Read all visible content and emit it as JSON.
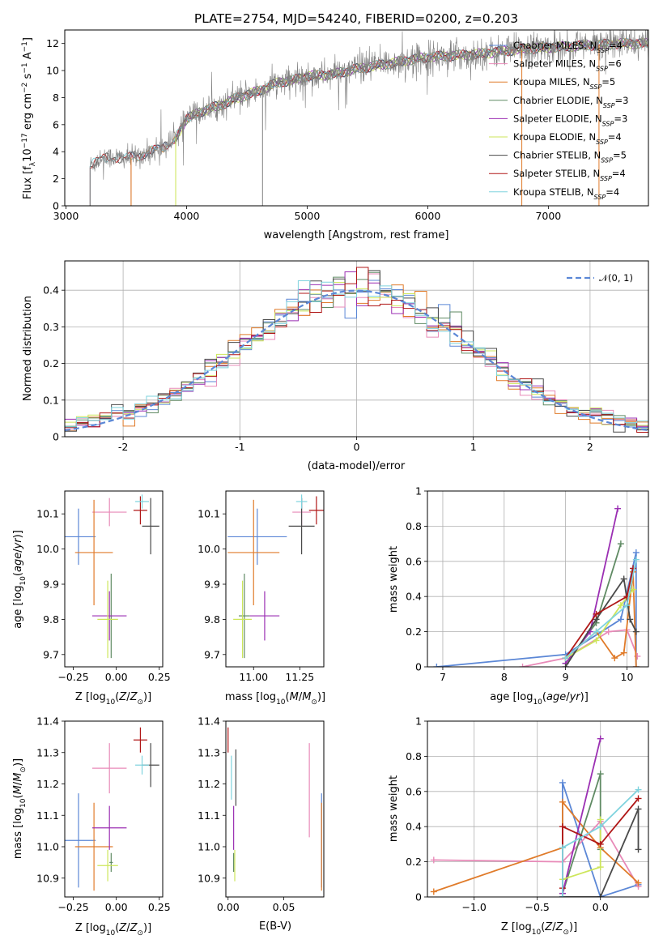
{
  "colors": {
    "Chabrier MILES": "#5b87d6",
    "Salpeter MILES": "#e88ab8",
    "Kroupa MILES": "#e07b2a",
    "Chabrier ELODIE": "#5f8a63",
    "Salpeter ELODIE": "#9b2fb3",
    "Kroupa ELODIE": "#cde65a",
    "Chabrier STELIB": "#4a4a4a",
    "Salpeter STELIB": "#b01717",
    "Kroupa STELIB": "#7fd3de"
  },
  "chart_data": [
    {
      "id": "spectrum",
      "type": "line",
      "title": "PLATE=2754, MJD=54240, FIBERID=0200, z=0.203",
      "xlabel": "wavelength [Angstrom, rest frame]",
      "ylabel": "Flux [f_λ10^-17 erg cm^-2 s^-1 A^-1]",
      "xlim": [
        2990,
        7830
      ],
      "ylim": [
        0,
        13
      ],
      "xticks": [
        3000,
        4000,
        5000,
        6000,
        7000
      ],
      "yticks": [
        0,
        2,
        4,
        6,
        8,
        10,
        12
      ],
      "grid": false,
      "legend_loc": "upper right",
      "legend": [
        {
          "model": "Chabrier MILES",
          "label": "Chabrier MILES, N",
          "sub": "SSP",
          "tail": "=4"
        },
        {
          "model": "Salpeter MILES",
          "label": "Salpeter MILES, N",
          "sub": "SSP",
          "tail": "=6"
        },
        {
          "model": "Kroupa MILES",
          "label": "Kroupa MILES, N",
          "sub": "SSP",
          "tail": "=5"
        },
        {
          "model": "Chabrier ELODIE",
          "label": "Chabrier ELODIE, N",
          "sub": "SSP",
          "tail": "=3"
        },
        {
          "model": "Salpeter ELODIE",
          "label": "Salpeter ELODIE, N",
          "sub": "SSP",
          "tail": "=3"
        },
        {
          "model": "Kroupa ELODIE",
          "label": "Kroupa ELODIE, N",
          "sub": "SSP",
          "tail": "=4"
        },
        {
          "model": "Chabrier STELIB",
          "label": "Chabrier STELIB, N",
          "sub": "SSP",
          "tail": "=5"
        },
        {
          "model": "Salpeter STELIB",
          "label": "Salpeter STELIB, N",
          "sub": "SSP",
          "tail": "=4"
        },
        {
          "model": "Kroupa STELIB",
          "label": "Kroupa STELIB, N",
          "sub": "SSP",
          "tail": "=4"
        }
      ],
      "continuum": [
        [
          3200,
          3.0
        ],
        [
          3300,
          3.5
        ],
        [
          3400,
          3.6
        ],
        [
          3500,
          3.5
        ],
        [
          3600,
          3.7
        ],
        [
          3700,
          4.0
        ],
        [
          3800,
          4.3
        ],
        [
          3900,
          4.9
        ],
        [
          4000,
          6.4
        ],
        [
          4100,
          6.9
        ],
        [
          4200,
          7.2
        ],
        [
          4300,
          7.5
        ],
        [
          4400,
          7.9
        ],
        [
          4500,
          8.2
        ],
        [
          4600,
          8.5
        ],
        [
          4700,
          8.9
        ],
        [
          4800,
          9.2
        ],
        [
          4900,
          9.3
        ],
        [
          5000,
          9.6
        ],
        [
          5200,
          9.7
        ],
        [
          5400,
          10.1
        ],
        [
          5600,
          10.4
        ],
        [
          5800,
          10.7
        ],
        [
          6000,
          11.0
        ],
        [
          6200,
          11.1
        ],
        [
          6400,
          11.2
        ],
        [
          6600,
          11.4
        ],
        [
          6800,
          11.6
        ],
        [
          7000,
          11.7
        ],
        [
          7200,
          11.8
        ],
        [
          7400,
          11.9
        ],
        [
          7600,
          12.0
        ]
      ],
      "model_starts": {
        "Chabrier MILES": 3540,
        "Salpeter MILES": 3540,
        "Kroupa MILES": 3540,
        "Chabrier ELODIE": 3910,
        "Salpeter ELODIE": 3910,
        "Kroupa ELODIE": 3910,
        "Chabrier STELIB": 3200,
        "Salpeter STELIB": 3200,
        "Kroupa STELIB": 3200
      }
    },
    {
      "id": "residuals",
      "type": "histogram",
      "xlabel": "(data-model)/error",
      "ylabel": "Normed distribution",
      "xlim": [
        -2.5,
        2.5
      ],
      "ylim": [
        0,
        0.48
      ],
      "xticks": [
        -2,
        -1,
        0,
        1,
        2
      ],
      "yticks": [
        0.0,
        0.1,
        0.2,
        0.3,
        0.4
      ],
      "grid": true,
      "bins": 50,
      "reference": {
        "label": "𝒩(0, 1)",
        "mean": 0,
        "sigma": 1,
        "style": "dashed"
      },
      "legend_loc": "upper right"
    },
    {
      "id": "age_vs_Z",
      "type": "errorbar",
      "xlabel": "Z [log10(Z/Z⊙)]",
      "ylabel": "age [log10(age/yr)]",
      "xlim": [
        -0.3,
        0.27
      ],
      "ylim": [
        9.665,
        10.165
      ],
      "xticks": [
        -0.25,
        0.0,
        0.25
      ],
      "xticklabels": [
        "−0.25",
        "0.00",
        "0.25"
      ],
      "yticks": [
        9.7,
        9.8,
        9.9,
        10.0,
        10.1
      ],
      "yticklabels": [
        "9.7",
        "9.8",
        "9.9",
        "10.0",
        "10.1"
      ],
      "points": [
        {
          "model": "Chabrier MILES",
          "x": -0.22,
          "xerr": 0.1,
          "y": 10.035,
          "yerr": 0.08
        },
        {
          "model": "Salpeter MILES",
          "x": -0.04,
          "xerr": 0.1,
          "y": 10.105,
          "yerr": 0.04
        },
        {
          "model": "Kroupa MILES",
          "x": -0.13,
          "xerr": 0.11,
          "y": 9.99,
          "yerr": 0.15
        },
        {
          "model": "Chabrier ELODIE",
          "x": -0.03,
          "xerr": 0.01,
          "y": 9.81,
          "yerr": 0.12
        },
        {
          "model": "Salpeter ELODIE",
          "x": -0.04,
          "xerr": 0.1,
          "y": 9.81,
          "yerr": 0.07
        },
        {
          "model": "Kroupa ELODIE",
          "x": -0.05,
          "xerr": 0.06,
          "y": 9.8,
          "yerr": 0.11
        },
        {
          "model": "Chabrier STELIB",
          "x": 0.2,
          "xerr": 0.05,
          "y": 10.065,
          "yerr": 0.08
        },
        {
          "model": "Salpeter STELIB",
          "x": 0.14,
          "xerr": 0.04,
          "y": 10.11,
          "yerr": 0.04
        },
        {
          "model": "Kroupa STELIB",
          "x": 0.15,
          "xerr": 0.04,
          "y": 10.135,
          "yerr": 0.02
        }
      ]
    },
    {
      "id": "age_vs_mass",
      "type": "errorbar",
      "xlabel": "mass [log10(M/M⊙)]",
      "ylabel": "",
      "xlim": [
        10.85,
        11.38
      ],
      "ylim": [
        9.665,
        10.165
      ],
      "xticks": [
        11.0,
        11.25
      ],
      "xticklabels": [
        "11.00",
        "11.25"
      ],
      "yticks": [
        9.7,
        9.8,
        9.9,
        10.0,
        10.1
      ],
      "yticklabels": [
        "9.7",
        "9.8",
        "9.9",
        "10.0",
        "10.1"
      ],
      "points": [
        {
          "model": "Chabrier MILES",
          "x": 11.02,
          "xerr": 0.16,
          "y": 10.035,
          "yerr": 0.08
        },
        {
          "model": "Salpeter MILES",
          "x": 11.26,
          "xerr": 0.05,
          "y": 10.105,
          "yerr": 0.04
        },
        {
          "model": "Kroupa MILES",
          "x": 11.0,
          "xerr": 0.14,
          "y": 9.99,
          "yerr": 0.15
        },
        {
          "model": "Chabrier ELODIE",
          "x": 10.95,
          "xerr": 0.03,
          "y": 9.81,
          "yerr": 0.12
        },
        {
          "model": "Salpeter ELODIE",
          "x": 11.06,
          "xerr": 0.08,
          "y": 9.81,
          "yerr": 0.07
        },
        {
          "model": "Kroupa ELODIE",
          "x": 10.94,
          "xerr": 0.05,
          "y": 9.8,
          "yerr": 0.11
        },
        {
          "model": "Chabrier STELIB",
          "x": 11.26,
          "xerr": 0.07,
          "y": 10.065,
          "yerr": 0.08
        },
        {
          "model": "Salpeter STELIB",
          "x": 11.34,
          "xerr": 0.04,
          "y": 10.11,
          "yerr": 0.04
        },
        {
          "model": "Kroupa STELIB",
          "x": 11.26,
          "xerr": 0.03,
          "y": 10.135,
          "yerr": 0.02
        }
      ]
    },
    {
      "id": "weight_vs_age",
      "type": "line",
      "xlabel": "age [log10(age/yr)]",
      "ylabel": "mass weight",
      "xlim": [
        6.75,
        10.35
      ],
      "ylim": [
        0.0,
        1.0
      ],
      "xticks": [
        7,
        8,
        9,
        10
      ],
      "yticks": [
        0.0,
        0.2,
        0.4,
        0.6,
        0.8,
        1.0
      ],
      "grid": true,
      "series": [
        {
          "model": "Chabrier MILES",
          "x": [
            6.9,
            9.0,
            9.9,
            10.15,
            10.15
          ],
          "y": [
            0.0,
            0.07,
            0.27,
            0.65,
            0.0
          ]
        },
        {
          "model": "Salpeter MILES",
          "x": [
            8.3,
            9.0,
            9.7,
            10.0,
            10.17
          ],
          "y": [
            0.0,
            0.05,
            0.2,
            0.21,
            0.06
          ]
        },
        {
          "model": "Kroupa MILES",
          "x": [
            9.0,
            9.5,
            9.8,
            9.95,
            10.1,
            10.15
          ],
          "y": [
            0.05,
            0.2,
            0.05,
            0.08,
            0.54,
            0.0
          ]
        },
        {
          "model": "Chabrier ELODIE",
          "x": [
            9.0,
            9.5,
            9.9
          ],
          "y": [
            0.02,
            0.25,
            0.7
          ]
        },
        {
          "model": "Salpeter ELODIE",
          "x": [
            9.0,
            9.4,
            9.85
          ],
          "y": [
            0.02,
            0.2,
            0.9
          ]
        },
        {
          "model": "Kroupa ELODIE",
          "x": [
            9.0,
            9.5,
            9.9,
            10.1
          ],
          "y": [
            0.05,
            0.15,
            0.35,
            0.44
          ]
        },
        {
          "model": "Chabrier STELIB",
          "x": [
            9.0,
            9.5,
            9.95,
            10.05,
            10.15
          ],
          "y": [
            0.0,
            0.27,
            0.5,
            0.27,
            0.2
          ]
        },
        {
          "model": "Salpeter STELIB",
          "x": [
            9.0,
            9.5,
            10.0,
            10.1
          ],
          "y": [
            0.05,
            0.3,
            0.4,
            0.56
          ]
        },
        {
          "model": "Kroupa STELIB",
          "x": [
            9.0,
            9.5,
            10.0,
            10.15
          ],
          "y": [
            0.05,
            0.2,
            0.35,
            0.61
          ]
        }
      ]
    },
    {
      "id": "mass_vs_Z",
      "type": "errorbar",
      "xlabel": "Z [log10(Z/Z⊙)]",
      "ylabel": "mass [log10(M/M⊙)]",
      "xlim": [
        -0.3,
        0.27
      ],
      "ylim": [
        10.84,
        11.4
      ],
      "xticks": [
        -0.25,
        0.0,
        0.25
      ],
      "xticklabels": [
        "−0.25",
        "0.00",
        "0.25"
      ],
      "yticks": [
        10.9,
        11.0,
        11.1,
        11.2,
        11.3,
        11.4
      ],
      "yticklabels": [
        "10.9",
        "11.0",
        "11.1",
        "11.2",
        "11.3",
        "11.4"
      ],
      "points": [
        {
          "model": "Chabrier MILES",
          "x": -0.22,
          "xerr": 0.1,
          "y": 11.02,
          "yerr": 0.15
        },
        {
          "model": "Salpeter MILES",
          "x": -0.04,
          "xerr": 0.1,
          "y": 11.25,
          "yerr": 0.08
        },
        {
          "model": "Kroupa MILES",
          "x": -0.13,
          "xerr": 0.11,
          "y": 11.0,
          "yerr": 0.14
        },
        {
          "model": "Chabrier ELODIE",
          "x": -0.03,
          "xerr": 0.01,
          "y": 10.95,
          "yerr": 0.03
        },
        {
          "model": "Salpeter ELODIE",
          "x": -0.04,
          "xerr": 0.1,
          "y": 11.06,
          "yerr": 0.07
        },
        {
          "model": "Kroupa ELODIE",
          "x": -0.05,
          "xerr": 0.06,
          "y": 10.94,
          "yerr": 0.05
        },
        {
          "model": "Chabrier STELIB",
          "x": 0.2,
          "xerr": 0.05,
          "y": 11.26,
          "yerr": 0.07
        },
        {
          "model": "Salpeter STELIB",
          "x": 0.14,
          "xerr": 0.04,
          "y": 11.34,
          "yerr": 0.04
        },
        {
          "model": "Kroupa STELIB",
          "x": 0.15,
          "xerr": 0.04,
          "y": 11.26,
          "yerr": 0.03
        }
      ]
    },
    {
      "id": "mass_vs_ebv",
      "type": "errorbar",
      "xlabel": "E(B-V)",
      "ylabel": "",
      "xlim": [
        -0.002,
        0.086
      ],
      "ylim": [
        10.84,
        11.4
      ],
      "xticks": [
        0.0,
        0.05
      ],
      "xticklabels": [
        "0.00",
        "0.05"
      ],
      "yticks": [
        10.9,
        11.0,
        11.1,
        11.2,
        11.3,
        11.4
      ],
      "yticklabels": [
        "10.9",
        "11.0",
        "11.1",
        "11.2",
        "11.3",
        "11.4"
      ],
      "points": [
        {
          "model": "Chabrier MILES",
          "x": 0.084,
          "xerr": 0.0,
          "y": 11.02,
          "yerr": 0.15
        },
        {
          "model": "Salpeter MILES",
          "x": 0.073,
          "xerr": 0.0,
          "y": 11.18,
          "yerr": 0.15
        },
        {
          "model": "Kroupa MILES",
          "x": 0.084,
          "xerr": 0.0,
          "y": 11.0,
          "yerr": 0.14
        },
        {
          "model": "Chabrier ELODIE",
          "x": 0.005,
          "xerr": 0.0,
          "y": 10.95,
          "yerr": 0.03
        },
        {
          "model": "Salpeter ELODIE",
          "x": 0.005,
          "xerr": 0.0,
          "y": 11.06,
          "yerr": 0.07
        },
        {
          "model": "Kroupa ELODIE",
          "x": 0.006,
          "xerr": 0.0,
          "y": 10.94,
          "yerr": 0.05
        },
        {
          "model": "Chabrier STELIB",
          "x": 0.007,
          "xerr": 0.0,
          "y": 11.22,
          "yerr": 0.09
        },
        {
          "model": "Salpeter STELIB",
          "x": 0.0,
          "xerr": 0.0,
          "y": 11.34,
          "yerr": 0.04
        },
        {
          "model": "Kroupa STELIB",
          "x": 0.003,
          "xerr": 0.0,
          "y": 11.22,
          "yerr": 0.07
        }
      ]
    },
    {
      "id": "weight_vs_Z",
      "type": "line",
      "xlabel": "Z [log10(Z/Z⊙)]",
      "ylabel": "mass weight",
      "xlim": [
        -1.37,
        0.38
      ],
      "ylim": [
        0.0,
        1.0
      ],
      "xticks": [
        -1.0,
        -0.5,
        0.0
      ],
      "xticklabels": [
        "−1.0",
        "−0.5",
        "0.0"
      ],
      "yticks": [
        0.0,
        0.2,
        0.4,
        0.6,
        0.8,
        1.0
      ],
      "grid": true,
      "series": [
        {
          "model": "Chabrier MILES",
          "x": [
            -0.3,
            -0.3,
            0.0,
            0.3
          ],
          "y": [
            0.0,
            0.65,
            0.0,
            0.07
          ]
        },
        {
          "model": "Salpeter MILES",
          "x": [
            -1.32,
            -0.3,
            0.0,
            0.3
          ],
          "y": [
            0.21,
            0.2,
            0.43,
            0.06
          ]
        },
        {
          "model": "Kroupa MILES",
          "x": [
            -1.32,
            -0.3,
            -0.3,
            0.0,
            0.3
          ],
          "y": [
            0.03,
            0.28,
            0.54,
            0.28,
            0.08
          ]
        },
        {
          "model": "Chabrier ELODIE",
          "x": [
            -0.3,
            0.0,
            0.0
          ],
          "y": [
            0.02,
            0.7,
            0.27
          ]
        },
        {
          "model": "Salpeter ELODIE",
          "x": [
            -0.3,
            0.0
          ],
          "y": [
            0.02,
            0.9
          ]
        },
        {
          "model": "Kroupa ELODIE",
          "x": [
            -0.3,
            0.0,
            0.0
          ],
          "y": [
            0.1,
            0.17,
            0.44
          ]
        },
        {
          "model": "Chabrier STELIB",
          "x": [
            -0.3,
            0.0,
            0.3,
            0.3
          ],
          "y": [
            0.0,
            0.0,
            0.5,
            0.27
          ]
        },
        {
          "model": "Salpeter STELIB",
          "x": [
            -0.3,
            -0.3,
            0.0,
            0.3
          ],
          "y": [
            0.05,
            0.4,
            0.3,
            0.56
          ]
        },
        {
          "model": "Kroupa STELIB",
          "x": [
            -0.3,
            -0.3,
            0.0,
            0.3
          ],
          "y": [
            0.0,
            0.28,
            0.4,
            0.61
          ]
        }
      ]
    }
  ]
}
